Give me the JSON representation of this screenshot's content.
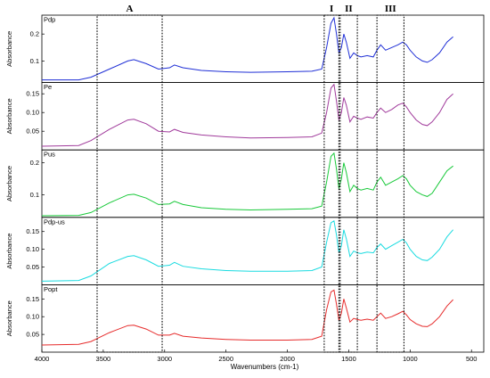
{
  "chart_data": {
    "type": "line",
    "xlabel": "Wavenumbers (cm-1)",
    "ylabel": "Absorbance",
    "xlim": [
      4000,
      400
    ],
    "x_reversed": true,
    "x_ticks": [
      "4000",
      "3500",
      "3000",
      "2500",
      "2000",
      "1500",
      "1000",
      "500"
    ],
    "regions": [
      {
        "label": "A",
        "from": 3550,
        "to": 3020
      },
      {
        "label": "I",
        "from": 1700,
        "to": 1580
      },
      {
        "label": "II",
        "from": 1570,
        "to": 1430
      },
      {
        "label": "III",
        "from": 1270,
        "to": 1050
      }
    ],
    "panels": [
      {
        "name": "Pdp",
        "color": "#1f2fd6",
        "ylim": [
          0.02,
          0.27
        ],
        "yticks": [
          "0.2",
          "0.1"
        ],
        "ytick_values": [
          0.2,
          0.1
        ],
        "points": [
          [
            4000,
            0.03
          ],
          [
            3700,
            0.03
          ],
          [
            3600,
            0.04
          ],
          [
            3450,
            0.07
          ],
          [
            3300,
            0.1
          ],
          [
            3250,
            0.105
          ],
          [
            3150,
            0.09
          ],
          [
            3050,
            0.07
          ],
          [
            2960,
            0.075
          ],
          [
            2920,
            0.085
          ],
          [
            2850,
            0.075
          ],
          [
            2700,
            0.065
          ],
          [
            2500,
            0.06
          ],
          [
            2300,
            0.058
          ],
          [
            2000,
            0.06
          ],
          [
            1800,
            0.062
          ],
          [
            1720,
            0.07
          ],
          [
            1680,
            0.15
          ],
          [
            1645,
            0.24
          ],
          [
            1620,
            0.26
          ],
          [
            1600,
            0.2
          ],
          [
            1580,
            0.13
          ],
          [
            1560,
            0.15
          ],
          [
            1540,
            0.2
          ],
          [
            1520,
            0.17
          ],
          [
            1490,
            0.11
          ],
          [
            1460,
            0.13
          ],
          [
            1430,
            0.12
          ],
          [
            1400,
            0.115
          ],
          [
            1350,
            0.12
          ],
          [
            1300,
            0.115
          ],
          [
            1270,
            0.14
          ],
          [
            1240,
            0.16
          ],
          [
            1200,
            0.14
          ],
          [
            1150,
            0.15
          ],
          [
            1100,
            0.16
          ],
          [
            1060,
            0.17
          ],
          [
            1030,
            0.16
          ],
          [
            1000,
            0.14
          ],
          [
            950,
            0.115
          ],
          [
            900,
            0.1
          ],
          [
            860,
            0.095
          ],
          [
            820,
            0.105
          ],
          [
            760,
            0.13
          ],
          [
            700,
            0.17
          ],
          [
            650,
            0.19
          ]
        ]
      },
      {
        "name": "Pe",
        "color": "#a03a9b",
        "ylim": [
          0.0,
          0.18
        ],
        "yticks": [
          "0.15",
          "0.10",
          "0.05"
        ],
        "ytick_values": [
          0.15,
          0.1,
          0.05
        ],
        "points": [
          [
            4000,
            0.01
          ],
          [
            3700,
            0.012
          ],
          [
            3600,
            0.025
          ],
          [
            3450,
            0.055
          ],
          [
            3300,
            0.08
          ],
          [
            3250,
            0.082
          ],
          [
            3150,
            0.07
          ],
          [
            3050,
            0.05
          ],
          [
            2960,
            0.048
          ],
          [
            2920,
            0.055
          ],
          [
            2850,
            0.047
          ],
          [
            2700,
            0.04
          ],
          [
            2500,
            0.035
          ],
          [
            2300,
            0.032
          ],
          [
            2000,
            0.033
          ],
          [
            1800,
            0.035
          ],
          [
            1720,
            0.045
          ],
          [
            1680,
            0.1
          ],
          [
            1645,
            0.165
          ],
          [
            1620,
            0.175
          ],
          [
            1600,
            0.13
          ],
          [
            1580,
            0.08
          ],
          [
            1560,
            0.1
          ],
          [
            1540,
            0.14
          ],
          [
            1520,
            0.12
          ],
          [
            1490,
            0.075
          ],
          [
            1460,
            0.09
          ],
          [
            1430,
            0.085
          ],
          [
            1400,
            0.082
          ],
          [
            1350,
            0.088
          ],
          [
            1300,
            0.085
          ],
          [
            1270,
            0.1
          ],
          [
            1240,
            0.112
          ],
          [
            1200,
            0.1
          ],
          [
            1150,
            0.108
          ],
          [
            1100,
            0.12
          ],
          [
            1060,
            0.125
          ],
          [
            1030,
            0.115
          ],
          [
            1000,
            0.1
          ],
          [
            950,
            0.08
          ],
          [
            900,
            0.068
          ],
          [
            860,
            0.065
          ],
          [
            820,
            0.075
          ],
          [
            760,
            0.1
          ],
          [
            700,
            0.135
          ],
          [
            650,
            0.15
          ]
        ]
      },
      {
        "name": "Pus",
        "color": "#19c93a",
        "ylim": [
          0.03,
          0.24
        ],
        "yticks": [
          "0.2",
          "0.1"
        ],
        "ytick_values": [
          0.2,
          0.1
        ],
        "points": [
          [
            4000,
            0.035
          ],
          [
            3700,
            0.036
          ],
          [
            3600,
            0.045
          ],
          [
            3450,
            0.075
          ],
          [
            3300,
            0.1
          ],
          [
            3250,
            0.102
          ],
          [
            3150,
            0.09
          ],
          [
            3050,
            0.07
          ],
          [
            2960,
            0.072
          ],
          [
            2920,
            0.08
          ],
          [
            2850,
            0.07
          ],
          [
            2700,
            0.06
          ],
          [
            2500,
            0.055
          ],
          [
            2300,
            0.053
          ],
          [
            2000,
            0.055
          ],
          [
            1800,
            0.057
          ],
          [
            1720,
            0.065
          ],
          [
            1680,
            0.14
          ],
          [
            1645,
            0.22
          ],
          [
            1620,
            0.23
          ],
          [
            1600,
            0.18
          ],
          [
            1580,
            0.12
          ],
          [
            1560,
            0.15
          ],
          [
            1540,
            0.2
          ],
          [
            1520,
            0.17
          ],
          [
            1490,
            0.11
          ],
          [
            1460,
            0.13
          ],
          [
            1430,
            0.12
          ],
          [
            1400,
            0.115
          ],
          [
            1350,
            0.12
          ],
          [
            1300,
            0.115
          ],
          [
            1270,
            0.14
          ],
          [
            1240,
            0.155
          ],
          [
            1200,
            0.13
          ],
          [
            1150,
            0.14
          ],
          [
            1100,
            0.15
          ],
          [
            1060,
            0.16
          ],
          [
            1030,
            0.15
          ],
          [
            1000,
            0.13
          ],
          [
            950,
            0.11
          ],
          [
            900,
            0.1
          ],
          [
            860,
            0.095
          ],
          [
            820,
            0.105
          ],
          [
            760,
            0.14
          ],
          [
            700,
            0.175
          ],
          [
            650,
            0.19
          ]
        ]
      },
      {
        "name": "Pdp-us",
        "color": "#19dbe0",
        "ylim": [
          0.0,
          0.19
        ],
        "yticks": [
          "0.15",
          "0.10",
          "0.05"
        ],
        "ytick_values": [
          0.15,
          0.1,
          0.05
        ],
        "points": [
          [
            4000,
            0.01
          ],
          [
            3700,
            0.012
          ],
          [
            3600,
            0.025
          ],
          [
            3450,
            0.06
          ],
          [
            3300,
            0.08
          ],
          [
            3250,
            0.082
          ],
          [
            3150,
            0.07
          ],
          [
            3050,
            0.052
          ],
          [
            2960,
            0.055
          ],
          [
            2920,
            0.063
          ],
          [
            2850,
            0.052
          ],
          [
            2700,
            0.045
          ],
          [
            2500,
            0.04
          ],
          [
            2300,
            0.038
          ],
          [
            2000,
            0.038
          ],
          [
            1800,
            0.04
          ],
          [
            1720,
            0.05
          ],
          [
            1680,
            0.12
          ],
          [
            1645,
            0.175
          ],
          [
            1620,
            0.18
          ],
          [
            1600,
            0.14
          ],
          [
            1580,
            0.09
          ],
          [
            1560,
            0.11
          ],
          [
            1540,
            0.155
          ],
          [
            1520,
            0.13
          ],
          [
            1490,
            0.08
          ],
          [
            1460,
            0.095
          ],
          [
            1430,
            0.09
          ],
          [
            1400,
            0.088
          ],
          [
            1350,
            0.092
          ],
          [
            1300,
            0.09
          ],
          [
            1270,
            0.105
          ],
          [
            1240,
            0.115
          ],
          [
            1200,
            0.1
          ],
          [
            1150,
            0.11
          ],
          [
            1100,
            0.12
          ],
          [
            1060,
            0.128
          ],
          [
            1030,
            0.118
          ],
          [
            1000,
            0.1
          ],
          [
            950,
            0.08
          ],
          [
            900,
            0.07
          ],
          [
            860,
            0.068
          ],
          [
            820,
            0.078
          ],
          [
            760,
            0.1
          ],
          [
            700,
            0.135
          ],
          [
            650,
            0.155
          ]
        ]
      },
      {
        "name": "Popt",
        "color": "#e62b2b",
        "ylim": [
          0.0,
          0.19
        ],
        "yticks": [
          "0.15",
          "0.10",
          "0.05"
        ],
        "ytick_values": [
          0.15,
          0.1,
          0.05
        ],
        "points": [
          [
            4000,
            0.02
          ],
          [
            3700,
            0.022
          ],
          [
            3600,
            0.03
          ],
          [
            3450,
            0.055
          ],
          [
            3300,
            0.075
          ],
          [
            3250,
            0.076
          ],
          [
            3150,
            0.065
          ],
          [
            3050,
            0.048
          ],
          [
            2960,
            0.048
          ],
          [
            2920,
            0.053
          ],
          [
            2850,
            0.045
          ],
          [
            2700,
            0.04
          ],
          [
            2500,
            0.036
          ],
          [
            2300,
            0.034
          ],
          [
            2000,
            0.034
          ],
          [
            1800,
            0.036
          ],
          [
            1720,
            0.045
          ],
          [
            1680,
            0.12
          ],
          [
            1645,
            0.17
          ],
          [
            1620,
            0.175
          ],
          [
            1600,
            0.135
          ],
          [
            1580,
            0.09
          ],
          [
            1560,
            0.11
          ],
          [
            1540,
            0.15
          ],
          [
            1520,
            0.125
          ],
          [
            1490,
            0.085
          ],
          [
            1460,
            0.095
          ],
          [
            1430,
            0.092
          ],
          [
            1400,
            0.09
          ],
          [
            1350,
            0.093
          ],
          [
            1300,
            0.09
          ],
          [
            1270,
            0.1
          ],
          [
            1240,
            0.11
          ],
          [
            1200,
            0.095
          ],
          [
            1150,
            0.1
          ],
          [
            1100,
            0.108
          ],
          [
            1060,
            0.115
          ],
          [
            1030,
            0.105
          ],
          [
            1000,
            0.092
          ],
          [
            950,
            0.08
          ],
          [
            900,
            0.073
          ],
          [
            860,
            0.072
          ],
          [
            820,
            0.08
          ],
          [
            760,
            0.1
          ],
          [
            700,
            0.13
          ],
          [
            650,
            0.148
          ]
        ]
      }
    ]
  }
}
